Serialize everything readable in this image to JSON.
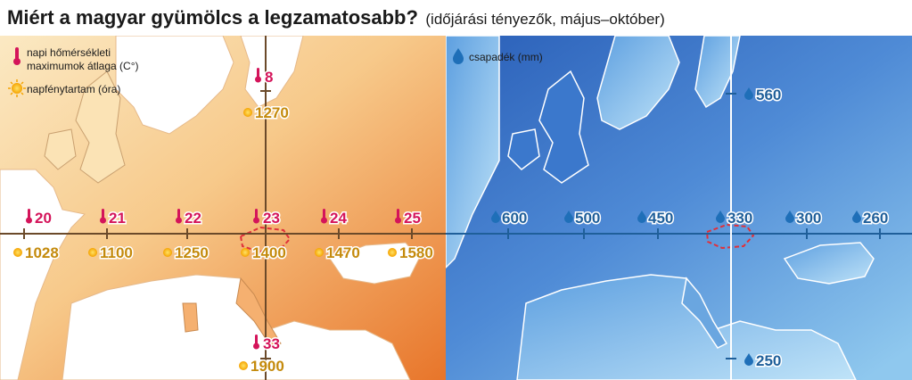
{
  "title": {
    "main": "Miért a magyar gyümölcs a legzamatosabb?",
    "sub": "(időjárási tényezők, május–október)"
  },
  "legend_left": {
    "temp_line1": "napi hőmérsékleti",
    "temp_line2": "maximumok átlaga (C°)",
    "sun": "napfénytartam (óra)"
  },
  "legend_right": {
    "rain": "csapadék (mm)"
  },
  "temperature": {
    "row": [
      "20",
      "21",
      "22",
      "23",
      "24",
      "25"
    ],
    "north": "8",
    "south": "33"
  },
  "sunshine": {
    "row": [
      "1028",
      "1100",
      "1250",
      "1400",
      "1470",
      "1580"
    ],
    "north": "1270",
    "south": "1900"
  },
  "precipitation": {
    "row": [
      "600",
      "500",
      "450",
      "330",
      "300",
      "260"
    ],
    "north": "560",
    "south": "250"
  },
  "colors": {
    "temp": "#d4145a",
    "sun": "#c48a0c",
    "rain": "#1f5f9a",
    "hungary_outline": "#e0303a"
  },
  "icons": [
    "thermometer-icon",
    "sun-icon",
    "droplet-icon"
  ]
}
